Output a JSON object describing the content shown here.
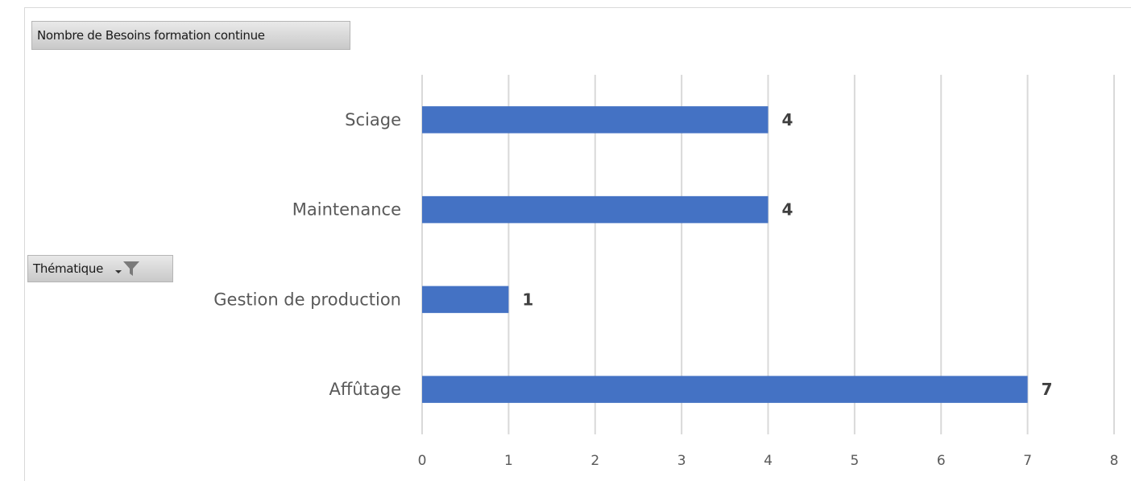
{
  "value_field_button": {
    "label": "Nombre de Besoins formation continue"
  },
  "axis_field_button": {
    "label": "Thématique",
    "icons": [
      "dropdown-arrow-icon",
      "filter-icon"
    ]
  },
  "chart_data": {
    "type": "bar",
    "orientation": "horizontal",
    "categories": [
      "Sciage",
      "Maintenance",
      "Gestion de production",
      "Affûtage"
    ],
    "values": [
      4,
      4,
      1,
      7
    ],
    "data_labels": [
      "4",
      "4",
      "1",
      "7"
    ],
    "xlim": [
      0,
      8
    ],
    "xticks": [
      "0",
      "1",
      "2",
      "3",
      "4",
      "5",
      "6",
      "7",
      "8"
    ],
    "grid": "vertical",
    "bar_color": "#4472C4",
    "title": "",
    "xlabel": "",
    "ylabel": ""
  }
}
